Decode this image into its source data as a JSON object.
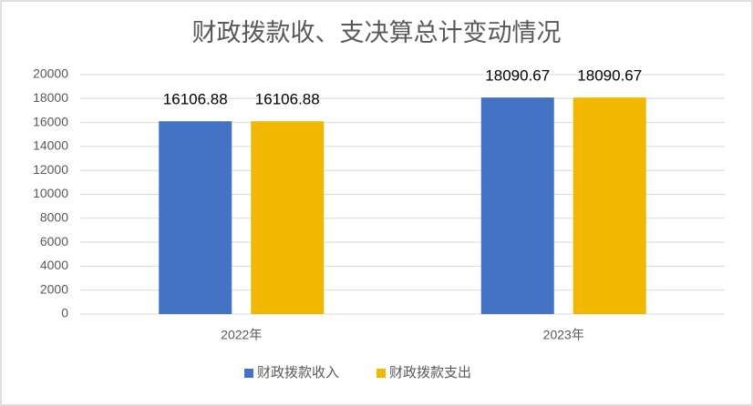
{
  "chart_data": {
    "type": "bar",
    "title": "财政拨款收、支决算总计变动情况",
    "categories": [
      "2022年",
      "2023年"
    ],
    "series": [
      {
        "name": "财政拨款收入",
        "color": "#4472c4",
        "values": [
          16106.88,
          18090.67
        ]
      },
      {
        "name": "财政拨款支出",
        "color": "#f2b800",
        "values": [
          16106.88,
          18090.67
        ]
      }
    ],
    "ylim": [
      0,
      20000
    ],
    "yticks": [
      0,
      2000,
      4000,
      6000,
      8000,
      10000,
      12000,
      14000,
      16000,
      18000,
      20000
    ],
    "grid": true,
    "legend": "bottom"
  }
}
